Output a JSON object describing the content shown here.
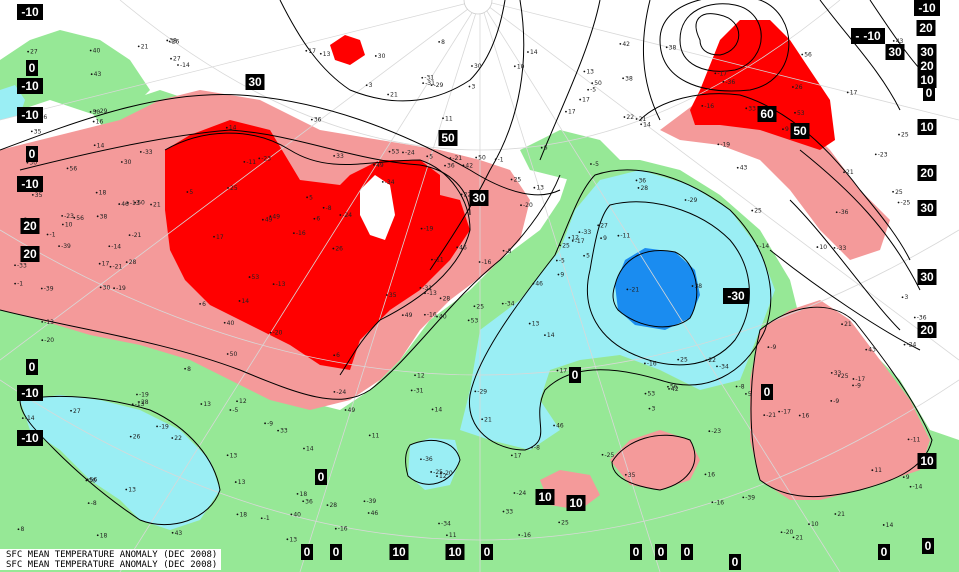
{
  "caption": {
    "line1": "SFC MEAN TEMPERATURE ANOMALY (DEC 2008)",
    "line2": "SFC MEAN TEMPERATURE ANOMALY (DEC 2008)"
  },
  "legend_colors": {
    "strong_positive": "#ff0000",
    "positive": "#f49a9a",
    "neutral_land": "#96e896",
    "negative": "#9aeef4",
    "strong_negative": "#1a8cf0",
    "water": "#ffffff"
  },
  "contour_labels": [
    {
      "id": "tl-10a",
      "value": "-10"
    },
    {
      "id": "l-0a",
      "value": "0"
    },
    {
      "id": "l-10b",
      "value": "-10"
    },
    {
      "id": "l-10c",
      "value": "-10"
    },
    {
      "id": "l-0b",
      "value": "0"
    },
    {
      "id": "l-10d",
      "value": "-10"
    },
    {
      "id": "l-20a",
      "value": "20"
    },
    {
      "id": "l-20b",
      "value": "20"
    },
    {
      "id": "l-0c",
      "value": "0"
    },
    {
      "id": "l-10e",
      "value": "-10"
    },
    {
      "id": "l-10f",
      "value": "-10"
    },
    {
      "id": "c-30a",
      "value": "30"
    },
    {
      "id": "c-50",
      "value": "50"
    },
    {
      "id": "c-30b",
      "value": "30"
    },
    {
      "id": "ne-60",
      "value": "60"
    },
    {
      "id": "ne-50",
      "value": "50"
    },
    {
      "id": "e-30c",
      "value": "-30"
    },
    {
      "id": "c-0d",
      "value": "0"
    },
    {
      "id": "c-0e",
      "value": "0"
    },
    {
      "id": "s-0f",
      "value": "0"
    },
    {
      "id": "s-10a",
      "value": "10"
    },
    {
      "id": "s-10b",
      "value": "10"
    },
    {
      "id": "r-10top",
      "value": "-10"
    },
    {
      "id": "r-20top",
      "value": "20"
    },
    {
      "id": "r-10mid",
      "value": "-10"
    },
    {
      "id": "r-30top",
      "value": "30"
    },
    {
      "id": "r-30b",
      "value": "30"
    },
    {
      "id": "r-20c",
      "value": "20"
    },
    {
      "id": "r-10d",
      "value": "10"
    },
    {
      "id": "r-0top",
      "value": "0"
    },
    {
      "id": "r-10e",
      "value": "10"
    },
    {
      "id": "r-20d",
      "value": "20"
    },
    {
      "id": "r-30e",
      "value": "30"
    },
    {
      "id": "r-30f",
      "value": "30"
    },
    {
      "id": "r-20g",
      "value": "20"
    },
    {
      "id": "r-10h",
      "value": "10"
    },
    {
      "id": "b-0a",
      "value": "0"
    },
    {
      "id": "b-0b",
      "value": "0"
    },
    {
      "id": "b-10a",
      "value": "10"
    },
    {
      "id": "b-10b",
      "value": "10"
    },
    {
      "id": "b-0c",
      "value": "0"
    },
    {
      "id": "b-0d",
      "value": "0"
    },
    {
      "id": "b-0e",
      "value": "0"
    },
    {
      "id": "b-0f",
      "value": "0"
    },
    {
      "id": "b-0g",
      "value": "0"
    },
    {
      "id": "b-0h",
      "value": "0"
    },
    {
      "id": "b-0i",
      "value": "0"
    },
    {
      "id": "e-60l",
      "value": "-10"
    },
    {
      "id": "ne-30x",
      "value": "-30"
    }
  ],
  "station_values": [
    "53",
    "30",
    "-13",
    "56",
    "25",
    "33",
    "38",
    "50",
    "21",
    "46",
    "-14",
    "14",
    "28",
    "25",
    "49",
    "36",
    "43",
    "5",
    "-20",
    "-19",
    "-24",
    "-8",
    "13",
    "-21",
    "-17",
    "-34",
    "-33",
    "-29",
    "-39",
    "-16",
    "-25",
    "-31",
    "-36",
    "-11",
    "-23",
    "-16",
    "-9",
    "10",
    "11",
    "22",
    "14",
    "6",
    "17",
    "3",
    "-1",
    "8",
    "-5",
    "18",
    "12",
    "9",
    "26",
    "21",
    "16",
    "42",
    "35",
    "13",
    "27",
    "40",
    "17"
  ]
}
